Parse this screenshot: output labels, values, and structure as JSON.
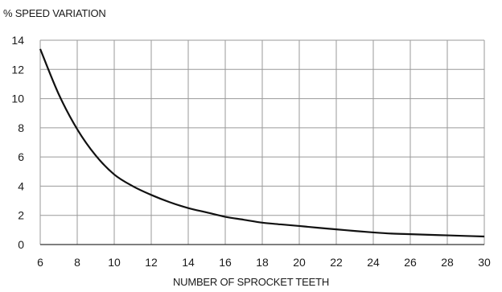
{
  "chart_data": {
    "type": "line",
    "title": "",
    "ylabel": "% SPEED VARIATION",
    "xlabel": "NUMBER OF SPROCKET TEETH",
    "xlim": [
      6,
      30
    ],
    "ylim": [
      0,
      14
    ],
    "xticks": [
      6,
      8,
      10,
      12,
      14,
      16,
      18,
      20,
      22,
      24,
      26,
      28,
      30
    ],
    "yticks": [
      0,
      2,
      4,
      6,
      8,
      10,
      12,
      14
    ],
    "grid": true,
    "series": [
      {
        "x": [
          6,
          7,
          8,
          9,
          10,
          11,
          12,
          13,
          14,
          15,
          16,
          17,
          18,
          19,
          20,
          21,
          22,
          23,
          24,
          25,
          26,
          27,
          28,
          29,
          30
        ],
        "y": [
          13.4,
          10.3,
          7.9,
          6.1,
          4.8,
          4.0,
          3.4,
          2.9,
          2.5,
          2.2,
          1.9,
          1.7,
          1.5,
          1.38,
          1.27,
          1.15,
          1.04,
          0.93,
          0.83,
          0.75,
          0.71,
          0.67,
          0.63,
          0.59,
          0.55
        ]
      }
    ]
  }
}
